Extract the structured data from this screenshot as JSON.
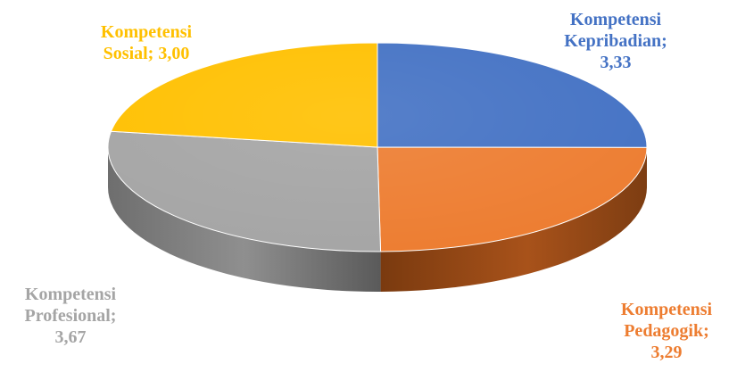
{
  "chart_data": {
    "type": "pie",
    "style": "3d",
    "legend": "none",
    "slices": [
      {
        "name": "Kompetensi Kepribadian",
        "value": 3.33,
        "color": "#4472C4",
        "label_lines": [
          "Kompetensi",
          "Kepribadian;",
          "3,33"
        ]
      },
      {
        "name": "Kompetensi Pedagogik",
        "value": 3.29,
        "color": "#ED7D31",
        "label_lines": [
          "Kompetensi",
          "Pedagogik;",
          "3,29"
        ]
      },
      {
        "name": "Kompetensi Profesional",
        "value": 3.67,
        "color": "#A5A5A5",
        "label_lines": [
          "Kompetensi",
          "Profesional;",
          "3,67"
        ]
      },
      {
        "name": "Kompetensi Sosial",
        "value": 3.0,
        "color": "#FFC000",
        "label_lines": [
          "Kompetensi",
          "Sosial; 3,00"
        ]
      }
    ]
  }
}
